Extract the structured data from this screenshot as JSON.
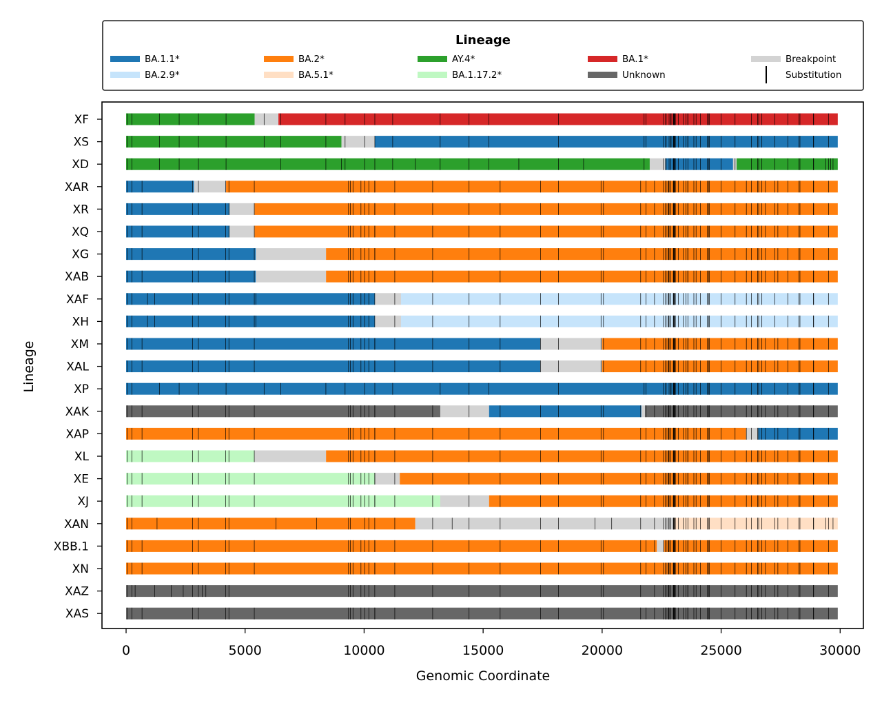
{
  "chart_data": {
    "type": "bar",
    "orientation": "horizontal",
    "subtype": "genome-segments",
    "xlabel": "Genomic Coordinate",
    "ylabel": "Lineage",
    "xlim": [
      -1000,
      31000
    ],
    "xticks": [
      0,
      5000,
      10000,
      15000,
      20000,
      25000,
      30000
    ],
    "grid": false,
    "legend": {
      "title": "Lineage",
      "placement": "top",
      "columns": [
        [
          {
            "label": "BA.1.1*",
            "key": "BA11"
          },
          {
            "label": "BA.2.9*",
            "key": "BA29"
          }
        ],
        [
          {
            "label": "BA.2*",
            "key": "BA2"
          },
          {
            "label": "BA.5.1*",
            "key": "BA51"
          }
        ],
        [
          {
            "label": "AY.4*",
            "key": "AY4"
          },
          {
            "label": "BA.1.17.2*",
            "key": "BA1172"
          }
        ],
        [
          {
            "label": "BA.1*",
            "key": "BA1"
          },
          {
            "label": "Unknown",
            "key": "UNK"
          }
        ],
        [
          {
            "label": "Breakpoint",
            "key": "BP"
          },
          {
            "label": "Substitution",
            "key": "SUB"
          }
        ]
      ]
    },
    "colors": {
      "BA11": "#1f77b4",
      "BA29": "#c6e4fb",
      "BA2": "#ff7f0e",
      "BA51": "#ffdfc4",
      "AY4": "#2ca02c",
      "BA1172": "#bff8c2",
      "BA1": "#d62728",
      "UNK": "#676767",
      "BP": "#d3d3d3",
      "SUB": "#000000"
    },
    "categories": [
      "XF",
      "XS",
      "XD",
      "XAR",
      "XR",
      "XQ",
      "XG",
      "XAB",
      "XAF",
      "XH",
      "XM",
      "XAL",
      "XP",
      "XAK",
      "XAP",
      "XL",
      "XE",
      "XJ",
      "XAN",
      "XBB.1",
      "XN",
      "XAZ",
      "XAS"
    ],
    "series": [
      {
        "lineage": "XF",
        "segments": [
          [
            0,
            5400,
            "AY4"
          ],
          [
            5400,
            6400,
            "BP"
          ],
          [
            6400,
            29900,
            "BA1"
          ]
        ],
        "subs": "A"
      },
      {
        "lineage": "XS",
        "segments": [
          [
            0,
            9050,
            "AY4"
          ],
          [
            9050,
            10450,
            "BP"
          ],
          [
            10450,
            29900,
            "BA11"
          ]
        ],
        "subs": "A"
      },
      {
        "lineage": "XD",
        "segments": [
          [
            0,
            22000,
            "AY4"
          ],
          [
            22000,
            22650,
            "BP"
          ],
          [
            22650,
            25500,
            "BA11"
          ],
          [
            25500,
            25650,
            "BP"
          ],
          [
            25650,
            29900,
            "AY4"
          ]
        ],
        "subs": "B"
      },
      {
        "lineage": "XAR",
        "segments": [
          [
            0,
            2850,
            "BA11"
          ],
          [
            2850,
            4200,
            "BP"
          ],
          [
            4200,
            29900,
            "BA2"
          ]
        ],
        "subs": "C"
      },
      {
        "lineage": "XR",
        "segments": [
          [
            0,
            4350,
            "BA11"
          ],
          [
            4350,
            5400,
            "BP"
          ],
          [
            5400,
            29900,
            "BA2"
          ]
        ],
        "subs": "C"
      },
      {
        "lineage": "XQ",
        "segments": [
          [
            0,
            4350,
            "BA11"
          ],
          [
            4350,
            5400,
            "BP"
          ],
          [
            5400,
            29900,
            "BA2"
          ]
        ],
        "subs": "C"
      },
      {
        "lineage": "XG",
        "segments": [
          [
            0,
            5450,
            "BA11"
          ],
          [
            5450,
            8400,
            "BP"
          ],
          [
            8400,
            29900,
            "BA2"
          ]
        ],
        "subs": "C"
      },
      {
        "lineage": "XAB",
        "segments": [
          [
            0,
            5450,
            "BA11"
          ],
          [
            5450,
            8400,
            "BP"
          ],
          [
            8400,
            29900,
            "BA2"
          ]
        ],
        "subs": "C"
      },
      {
        "lineage": "XAF",
        "segments": [
          [
            0,
            10450,
            "BA11"
          ],
          [
            10450,
            11550,
            "BP"
          ],
          [
            11550,
            29900,
            "BA29"
          ]
        ],
        "subs": "D"
      },
      {
        "lineage": "XH",
        "segments": [
          [
            0,
            10450,
            "BA11"
          ],
          [
            10450,
            11550,
            "BP"
          ],
          [
            11550,
            29900,
            "BA29"
          ]
        ],
        "subs": "D"
      },
      {
        "lineage": "XM",
        "segments": [
          [
            0,
            17400,
            "BA11"
          ],
          [
            17400,
            20000,
            "BP"
          ],
          [
            20000,
            29900,
            "BA2"
          ]
        ],
        "subs": "C"
      },
      {
        "lineage": "XAL",
        "segments": [
          [
            0,
            17400,
            "BA11"
          ],
          [
            17400,
            20000,
            "BP"
          ],
          [
            20000,
            29900,
            "BA2"
          ]
        ],
        "subs": "C"
      },
      {
        "lineage": "XP",
        "segments": [
          [
            0,
            29900,
            "BA11"
          ]
        ],
        "subs": "A"
      },
      {
        "lineage": "XAK",
        "segments": [
          [
            0,
            13200,
            "UNK"
          ],
          [
            13200,
            15250,
            "BP"
          ],
          [
            15250,
            21650,
            "BA11"
          ],
          [
            21650,
            21800,
            "BP"
          ],
          [
            21800,
            29900,
            "UNK"
          ]
        ],
        "subs": "C"
      },
      {
        "lineage": "XAP",
        "segments": [
          [
            0,
            26050,
            "BA2"
          ],
          [
            26050,
            26550,
            "BP"
          ],
          [
            26550,
            29900,
            "BA11"
          ]
        ],
        "subs": "C"
      },
      {
        "lineage": "XL",
        "segments": [
          [
            0,
            5400,
            "BA1172"
          ],
          [
            5400,
            8400,
            "BP"
          ],
          [
            8400,
            29900,
            "BA2"
          ]
        ],
        "subs": "C"
      },
      {
        "lineage": "XE",
        "segments": [
          [
            0,
            10450,
            "BA1172"
          ],
          [
            10450,
            11500,
            "BP"
          ],
          [
            11500,
            29900,
            "BA2"
          ]
        ],
        "subs": "C"
      },
      {
        "lineage": "XJ",
        "segments": [
          [
            0,
            13200,
            "BA1172"
          ],
          [
            13200,
            15250,
            "BP"
          ],
          [
            15250,
            29900,
            "BA2"
          ]
        ],
        "subs": "C"
      },
      {
        "lineage": "XAN",
        "segments": [
          [
            0,
            12150,
            "BA2"
          ],
          [
            12150,
            23000,
            "BP"
          ],
          [
            23000,
            29900,
            "BA51"
          ]
        ],
        "subs": "E"
      },
      {
        "lineage": "XBB.1",
        "segments": [
          [
            0,
            22300,
            "BA2"
          ],
          [
            22300,
            22600,
            "BP"
          ],
          [
            22600,
            29900,
            "BA2"
          ]
        ],
        "subs": "C"
      },
      {
        "lineage": "XN",
        "segments": [
          [
            0,
            29900,
            "BA2"
          ]
        ],
        "subs": "C"
      },
      {
        "lineage": "XAZ",
        "segments": [
          [
            0,
            29900,
            "UNK"
          ]
        ],
        "subs": "F"
      },
      {
        "lineage": "XAS",
        "segments": [
          [
            0,
            29900,
            "UNK"
          ]
        ],
        "subs": "C"
      }
    ],
    "substitution_sets": {
      "A": [
        50,
        241,
        1400,
        2230,
        3037,
        4200,
        5800,
        6500,
        8393,
        9200,
        10029,
        10450,
        11200,
        13195,
        14408,
        15240,
        18163,
        21762,
        21846,
        22578,
        22673,
        22679,
        22686,
        22813,
        22882,
        22898,
        22992,
        22995,
        23013,
        23040,
        23048,
        23055,
        23063,
        23075,
        23202,
        23403,
        23525,
        23599,
        23604,
        23854,
        23948,
        24130,
        24424,
        24469,
        24503,
        25000,
        25584,
        26270,
        26530,
        26577,
        26709,
        27259,
        27807,
        28271,
        28311,
        28881,
        28882,
        28883,
        29510
      ],
      "B": [
        50,
        241,
        1400,
        2230,
        3037,
        4200,
        6500,
        8393,
        9050,
        9200,
        10029,
        10450,
        11200,
        12150,
        13195,
        14408,
        15240,
        16500,
        18163,
        19220,
        21762,
        22578,
        22673,
        22686,
        22813,
        22882,
        22992,
        22995,
        23013,
        23040,
        23063,
        23075,
        23202,
        23403,
        23525,
        23604,
        23854,
        23948,
        24130,
        24424,
        24469,
        24503,
        25000,
        25584,
        26270,
        26530,
        26577,
        26709,
        27259,
        27807,
        28271,
        28311,
        28881,
        28882,
        28883,
        29400,
        29510,
        29600,
        29700
      ],
      "C": [
        50,
        241,
        670,
        2790,
        3037,
        4184,
        4321,
        5386,
        9344,
        9424,
        9534,
        9866,
        10029,
        10198,
        10447,
        10449,
        11288,
        12880,
        14408,
        15714,
        17410,
        18163,
        19955,
        20055,
        21618,
        21846,
        22200,
        22578,
        22674,
        22679,
        22686,
        22775,
        22786,
        22813,
        22882,
        22992,
        22995,
        23013,
        23040,
        23055,
        23063,
        23075,
        23202,
        23403,
        23525,
        23599,
        23604,
        23854,
        23948,
        24130,
        24424,
        24469,
        24503,
        25000,
        25584,
        26060,
        26270,
        26530,
        26577,
        26709,
        26858,
        27259,
        27382,
        27807,
        28271,
        28311,
        28881,
        28882,
        28883,
        29510
      ],
      "D": [
        50,
        241,
        900,
        1200,
        2790,
        3037,
        4184,
        4321,
        5386,
        5450,
        9344,
        9424,
        9534,
        9866,
        10029,
        10198,
        10447,
        11288,
        12880,
        14408,
        15714,
        17410,
        18163,
        19955,
        20055,
        21618,
        21846,
        22200,
        22578,
        22674,
        22686,
        22775,
        22786,
        22813,
        22882,
        22992,
        22995,
        23013,
        23040,
        23063,
        23075,
        23202,
        23403,
        23525,
        23604,
        23854,
        23948,
        24130,
        24424,
        24469,
        24503,
        25000,
        25584,
        26060,
        26270,
        26530,
        26577,
        26709,
        27259,
        27807,
        28271,
        28311,
        28881,
        28882,
        28883,
        29510
      ],
      "E": [
        50,
        241,
        1300,
        2790,
        3037,
        4184,
        4321,
        6300,
        8000,
        9344,
        9424,
        10029,
        10198,
        10447,
        11288,
        12880,
        13700,
        14408,
        15714,
        17410,
        18163,
        19700,
        20400,
        21618,
        22200,
        22578,
        22674,
        22686,
        22775,
        22813,
        22882,
        22992,
        22995,
        23013,
        23040,
        23063,
        23075,
        23202,
        23403,
        23525,
        23604,
        23854,
        23948,
        24130,
        24424,
        24469,
        24503,
        25000,
        25584,
        26060,
        26270,
        26530,
        26577,
        26709,
        27259,
        27382,
        27807,
        28271,
        28311,
        28881,
        28882,
        28883,
        29400,
        29510,
        29700
      ],
      "F": [
        50,
        241,
        380,
        1200,
        1900,
        2400,
        2790,
        3037,
        3200,
        3350,
        4184,
        4321,
        9344,
        9424,
        9534,
        9866,
        10029,
        10198,
        10447,
        11288,
        12880,
        14408,
        15714,
        17410,
        18163,
        19955,
        20055,
        21618,
        22200,
        22578,
        22674,
        22679,
        22686,
        22775,
        22786,
        22813,
        22882,
        22992,
        22995,
        23013,
        23040,
        23055,
        23063,
        23075,
        23202,
        23403,
        23525,
        23599,
        23604,
        23854,
        23948,
        24130,
        24424,
        24469,
        24503,
        25000,
        25584,
        26060,
        26270,
        26530,
        26577,
        26709,
        26858,
        27259,
        27382,
        27807,
        28271,
        28311,
        28881,
        28882,
        28883,
        29510
      ]
    }
  }
}
